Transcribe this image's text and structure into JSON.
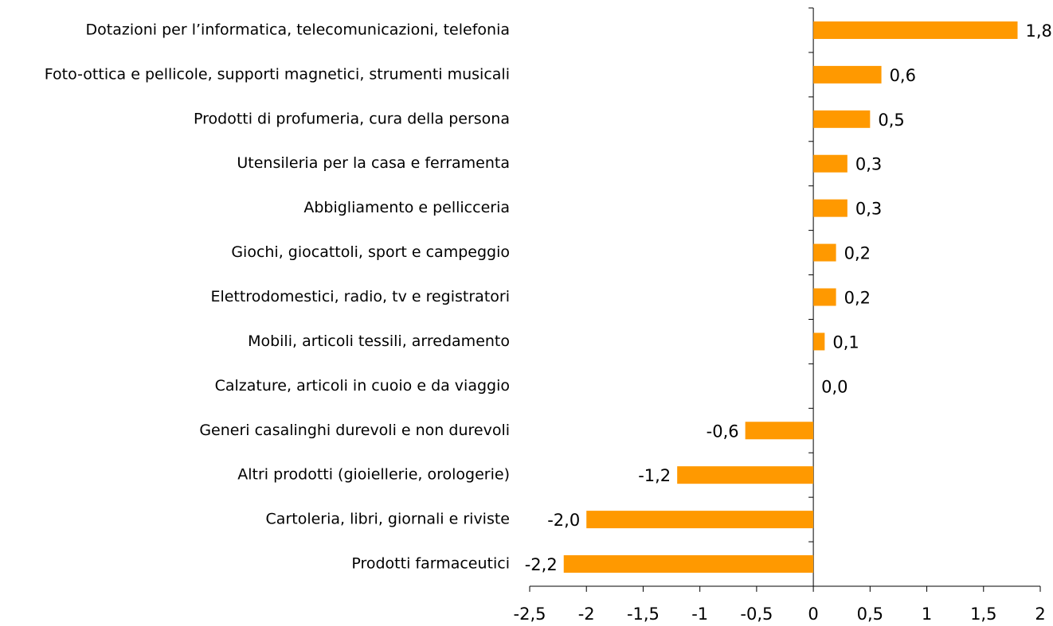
{
  "chart_data": {
    "type": "bar",
    "orientation": "horizontal",
    "categories": [
      "Dotazioni per l’informatica, telecomunicazioni, telefonia",
      "Foto-ottica e pellicole, supporti magnetici, strumenti musicali",
      "Prodotti di profumeria, cura della persona",
      "Utensileria per la casa e ferramenta",
      "Abbigliamento e pellicceria",
      "Giochi, giocattoli, sport e campeggio",
      "Elettrodomestici, radio, tv e registratori",
      "Mobili, articoli tessili, arredamento",
      "Calzature, articoli in cuoio e da viaggio",
      "Generi casalinghi durevoli e non durevoli",
      "Altri prodotti (gioiellerie, orologerie)",
      "Cartoleria, libri, giornali e riviste",
      "Prodotti farmaceutici"
    ],
    "values": [
      1.8,
      0.6,
      0.5,
      0.3,
      0.3,
      0.2,
      0.2,
      0.1,
      0.0,
      -0.6,
      -1.2,
      -2.0,
      -2.2
    ],
    "value_labels": [
      "1,8",
      "0,6",
      "0,5",
      "0,3",
      "0,3",
      "0,2",
      "0,2",
      "0,1",
      "0,0",
      "-0,6",
      "-1,2",
      "-2,0",
      "-2,2"
    ],
    "color": "#ff9900",
    "xlim": [
      -2.5,
      2
    ],
    "xticks": [
      {
        "value": -2.5,
        "label": "-2,5"
      },
      -2,
      {
        "value": -1.5,
        "label": "-1,5"
      },
      -1,
      {
        "value": -0.5,
        "label": "-0,5"
      },
      0,
      {
        "value": 0.5,
        "label": "0,5"
      },
      1,
      {
        "value": 1.5,
        "label": "1,5"
      },
      2
    ],
    "grid": false
  }
}
